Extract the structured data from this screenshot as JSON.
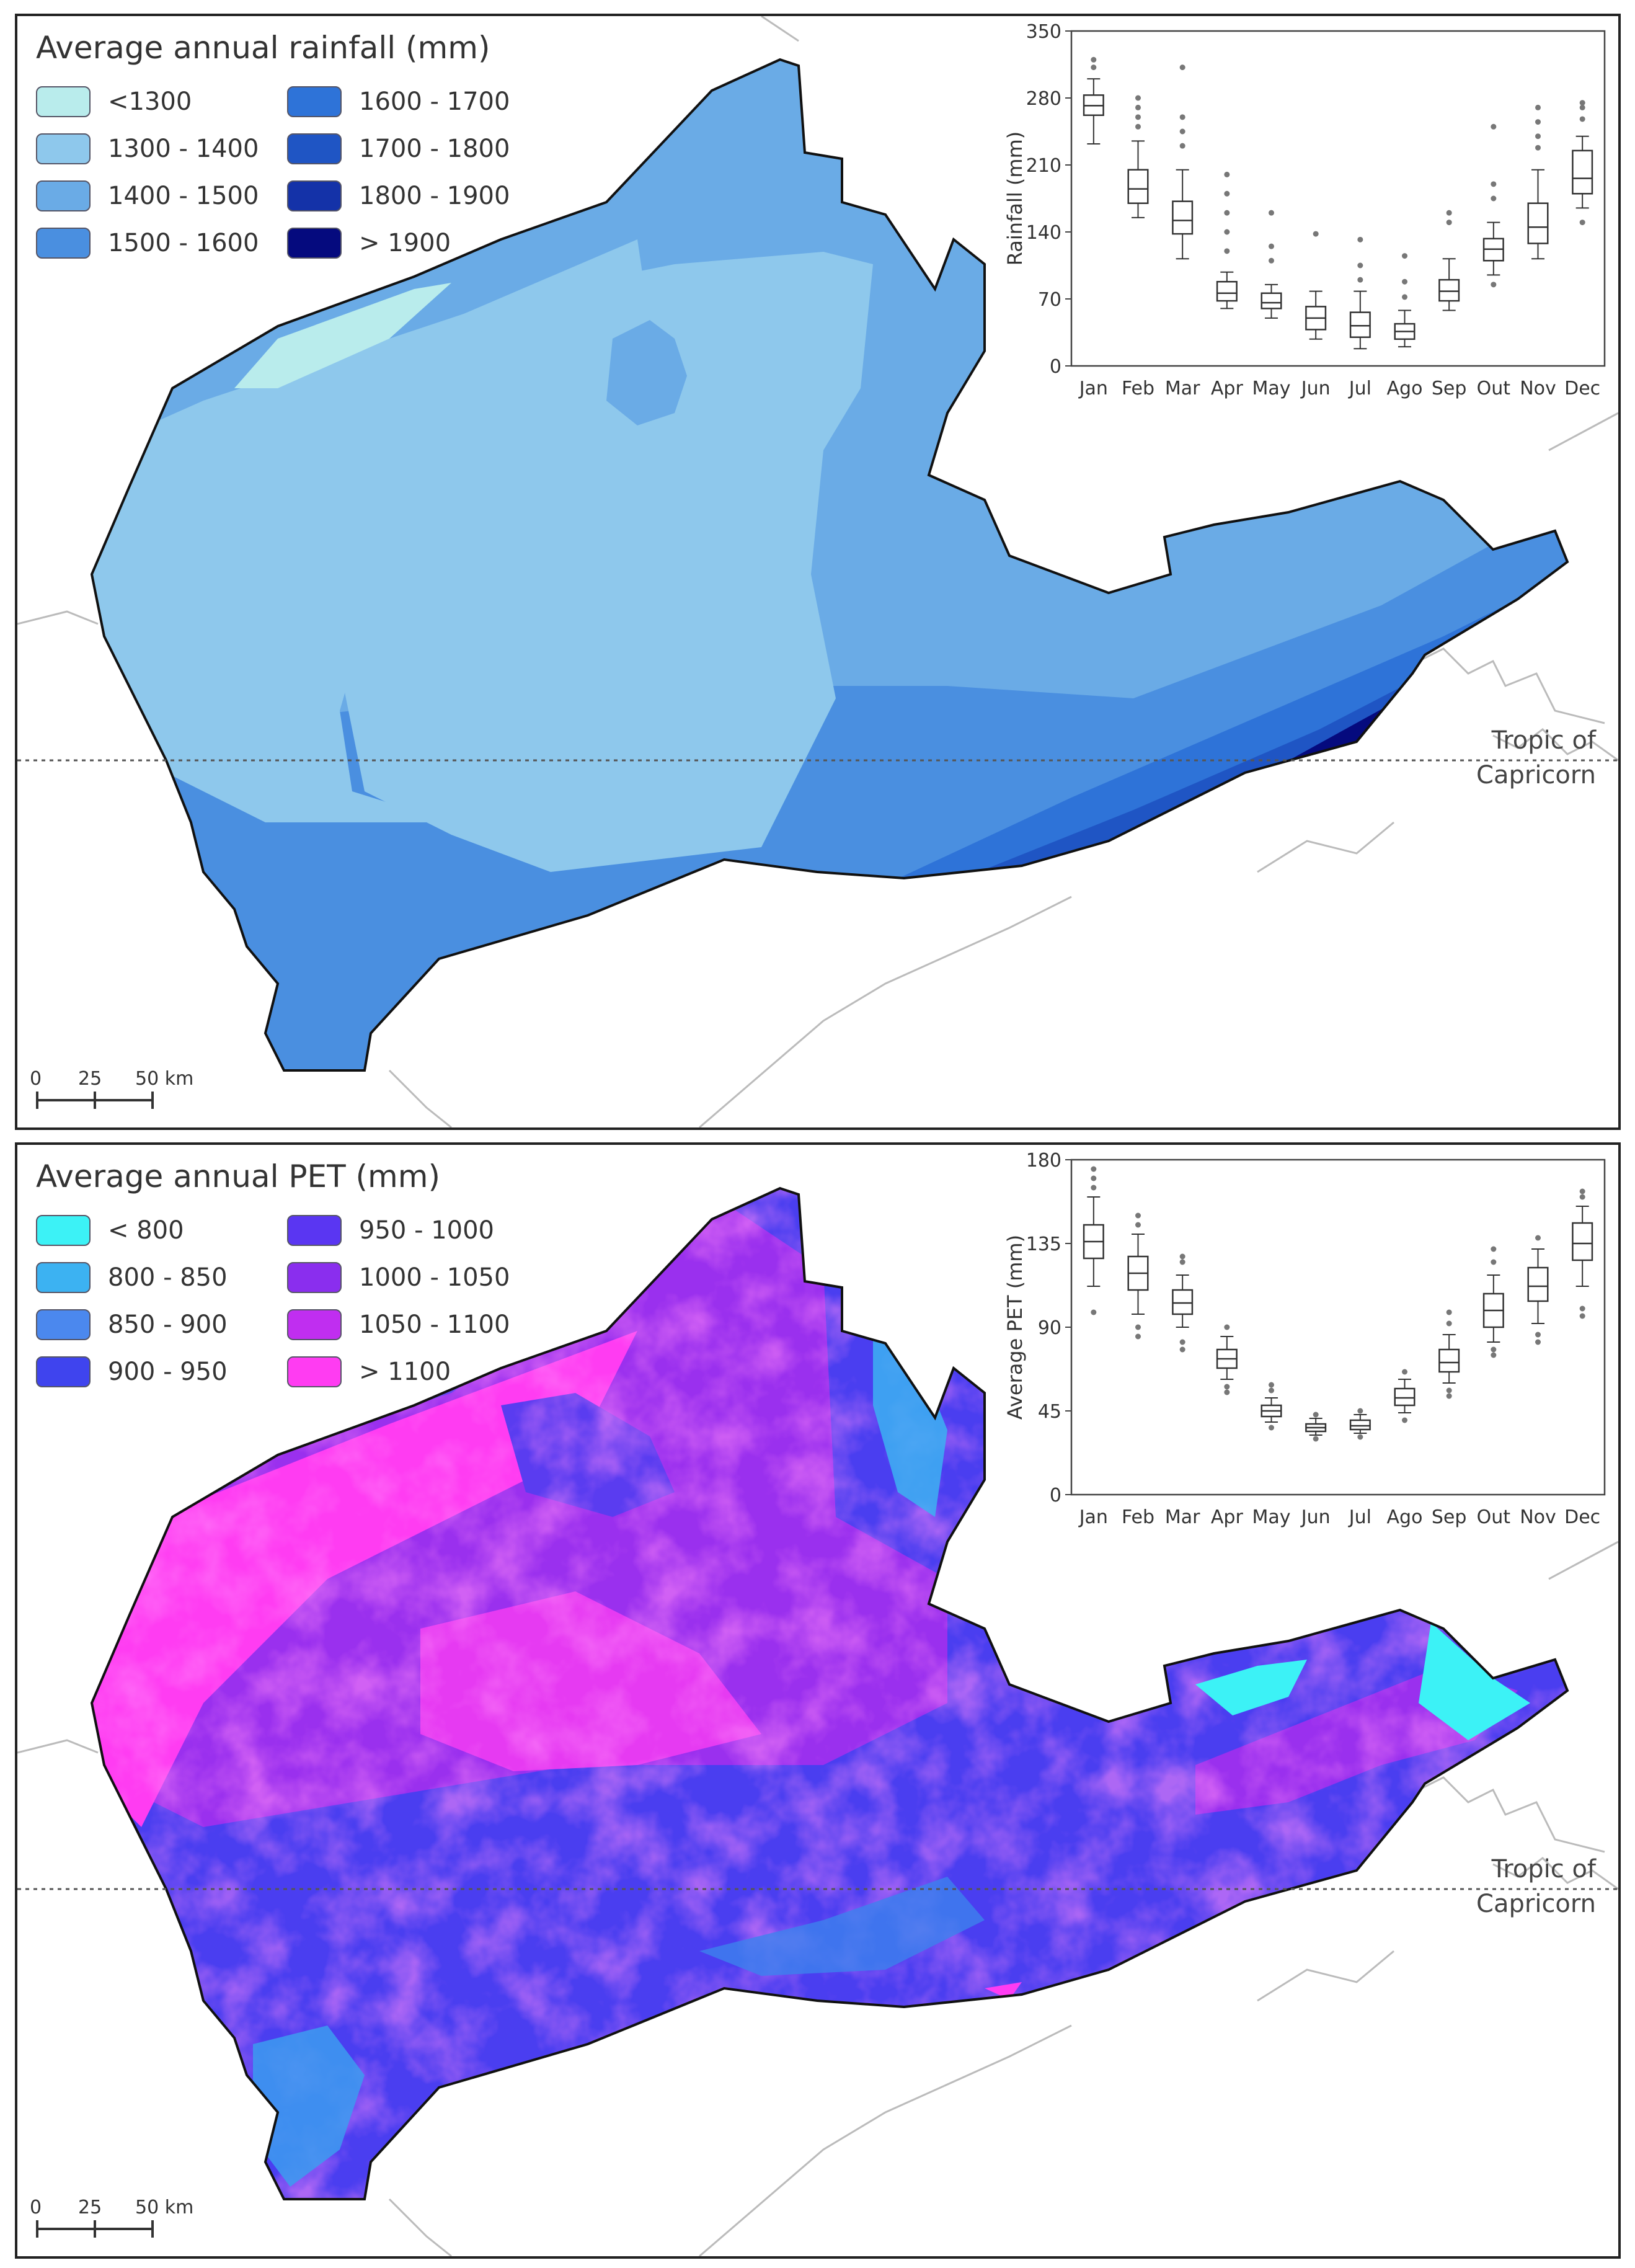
{
  "rainfall_panel": {
    "legend_title": "Average annual rainfall (mm)",
    "legend": [
      {
        "label": "<1300",
        "color": "#b9ecec"
      },
      {
        "label": "1300 - 1400",
        "color": "#8ec8ec"
      },
      {
        "label": "1400 - 1500",
        "color": "#6aabe6"
      },
      {
        "label": "1500 - 1600",
        "color": "#4a8fe0"
      },
      {
        "label": "1600 - 1700",
        "color": "#2e73d8"
      },
      {
        "label": "1700 - 1800",
        "color": "#1f55c4"
      },
      {
        "label": "1800 - 1900",
        "color": "#1432a8"
      },
      {
        "label": "> 1900",
        "color": "#050a7e"
      }
    ],
    "tropic_label": [
      "Tropic of",
      "Capricorn"
    ],
    "scale": {
      "ticks": [
        "0",
        "25",
        "50 km"
      ]
    }
  },
  "pet_panel": {
    "legend_title": "Average annual PET (mm)",
    "legend": [
      {
        "label": "< 800",
        "color": "#3cf2f6"
      },
      {
        "label": "800 - 850",
        "color": "#3cb2f2"
      },
      {
        "label": "850 - 900",
        "color": "#4b88ee"
      },
      {
        "label": "900 - 950",
        "color": "#3f44ee"
      },
      {
        "label": "950 - 1000",
        "color": "#5a36f2"
      },
      {
        "label": "1000 - 1050",
        "color": "#8a2eee"
      },
      {
        "label": "1050 - 1100",
        "color": "#c02ef0"
      },
      {
        "label": "> 1100",
        "color": "#ff3cf2"
      }
    ],
    "tropic_label": [
      "Tropic of",
      "Capricorn"
    ],
    "scale": {
      "ticks": [
        "0",
        "25",
        "50 km"
      ]
    }
  },
  "chart_data": [
    {
      "type": "boxplot",
      "ylabel": "Rainfall (mm)",
      "ylim": [
        0,
        350
      ],
      "yticks": [
        0,
        70,
        140,
        210,
        280,
        350
      ],
      "categories": [
        "Jan",
        "Feb",
        "Mar",
        "Apr",
        "May",
        "Jun",
        "Jul",
        "Ago",
        "Sep",
        "Out",
        "Nov",
        "Dec"
      ],
      "boxes": [
        {
          "min": 232,
          "q1": 262,
          "median": 272,
          "q3": 283,
          "max": 300,
          "outliers": [
            312,
            320
          ]
        },
        {
          "min": 155,
          "q1": 170,
          "median": 185,
          "q3": 205,
          "max": 235,
          "outliers": [
            250,
            260,
            270,
            280
          ]
        },
        {
          "min": 112,
          "q1": 138,
          "median": 152,
          "q3": 172,
          "max": 205,
          "outliers": [
            230,
            245,
            260,
            312
          ]
        },
        {
          "min": 60,
          "q1": 68,
          "median": 76,
          "q3": 88,
          "max": 98,
          "outliers": [
            120,
            140,
            160,
            180,
            200
          ]
        },
        {
          "min": 50,
          "q1": 60,
          "median": 66,
          "q3": 76,
          "max": 85,
          "outliers": [
            110,
            125,
            160
          ]
        },
        {
          "min": 28,
          "q1": 38,
          "median": 50,
          "q3": 62,
          "max": 78,
          "outliers": [
            138
          ]
        },
        {
          "min": 18,
          "q1": 30,
          "median": 42,
          "q3": 56,
          "max": 78,
          "outliers": [
            90,
            105,
            132
          ]
        },
        {
          "min": 20,
          "q1": 28,
          "median": 36,
          "q3": 44,
          "max": 58,
          "outliers": [
            72,
            88,
            115
          ]
        },
        {
          "min": 58,
          "q1": 68,
          "median": 78,
          "q3": 90,
          "max": 112,
          "outliers": [
            150,
            160
          ]
        },
        {
          "min": 95,
          "q1": 110,
          "median": 122,
          "q3": 133,
          "max": 150,
          "outliers": [
            85,
            175,
            190,
            250
          ]
        },
        {
          "min": 112,
          "q1": 128,
          "median": 145,
          "q3": 170,
          "max": 205,
          "outliers": [
            228,
            240,
            255,
            270
          ]
        },
        {
          "min": 165,
          "q1": 180,
          "median": 196,
          "q3": 225,
          "max": 240,
          "outliers": [
            150,
            258,
            270,
            275
          ]
        }
      ]
    },
    {
      "type": "boxplot",
      "ylabel": "Average PET (mm)",
      "ylim": [
        0,
        180
      ],
      "yticks": [
        0,
        45,
        90,
        135,
        180
      ],
      "categories": [
        "Jan",
        "Feb",
        "Mar",
        "Apr",
        "May",
        "Jun",
        "Jul",
        "Ago",
        "Sep",
        "Out",
        "Nov",
        "Dec"
      ],
      "boxes": [
        {
          "min": 112,
          "q1": 127,
          "median": 136,
          "q3": 145,
          "max": 160,
          "outliers": [
            98,
            165,
            170,
            175
          ]
        },
        {
          "min": 97,
          "q1": 110,
          "median": 119,
          "q3": 128,
          "max": 140,
          "outliers": [
            85,
            90,
            145,
            150
          ]
        },
        {
          "min": 90,
          "q1": 97,
          "median": 103,
          "q3": 110,
          "max": 118,
          "outliers": [
            78,
            82,
            125,
            128
          ]
        },
        {
          "min": 62,
          "q1": 68,
          "median": 73,
          "q3": 78,
          "max": 85,
          "outliers": [
            55,
            58,
            90
          ]
        },
        {
          "min": 39,
          "q1": 42,
          "median": 45,
          "q3": 48,
          "max": 52,
          "outliers": [
            36,
            56,
            59
          ]
        },
        {
          "min": 32,
          "q1": 34,
          "median": 36,
          "q3": 38,
          "max": 41,
          "outliers": [
            30,
            43
          ]
        },
        {
          "min": 33,
          "q1": 35,
          "median": 37,
          "q3": 40,
          "max": 43,
          "outliers": [
            31,
            45
          ]
        },
        {
          "min": 44,
          "q1": 48,
          "median": 52,
          "q3": 57,
          "max": 62,
          "outliers": [
            40,
            66
          ]
        },
        {
          "min": 60,
          "q1": 66,
          "median": 71,
          "q3": 78,
          "max": 86,
          "outliers": [
            53,
            56,
            92,
            98
          ]
        },
        {
          "min": 82,
          "q1": 90,
          "median": 99,
          "q3": 108,
          "max": 118,
          "outliers": [
            75,
            78,
            125,
            132
          ]
        },
        {
          "min": 92,
          "q1": 104,
          "median": 112,
          "q3": 122,
          "max": 132,
          "outliers": [
            82,
            86,
            138
          ]
        },
        {
          "min": 112,
          "q1": 126,
          "median": 135,
          "q3": 146,
          "max": 155,
          "outliers": [
            96,
            100,
            160,
            163
          ]
        }
      ]
    }
  ]
}
